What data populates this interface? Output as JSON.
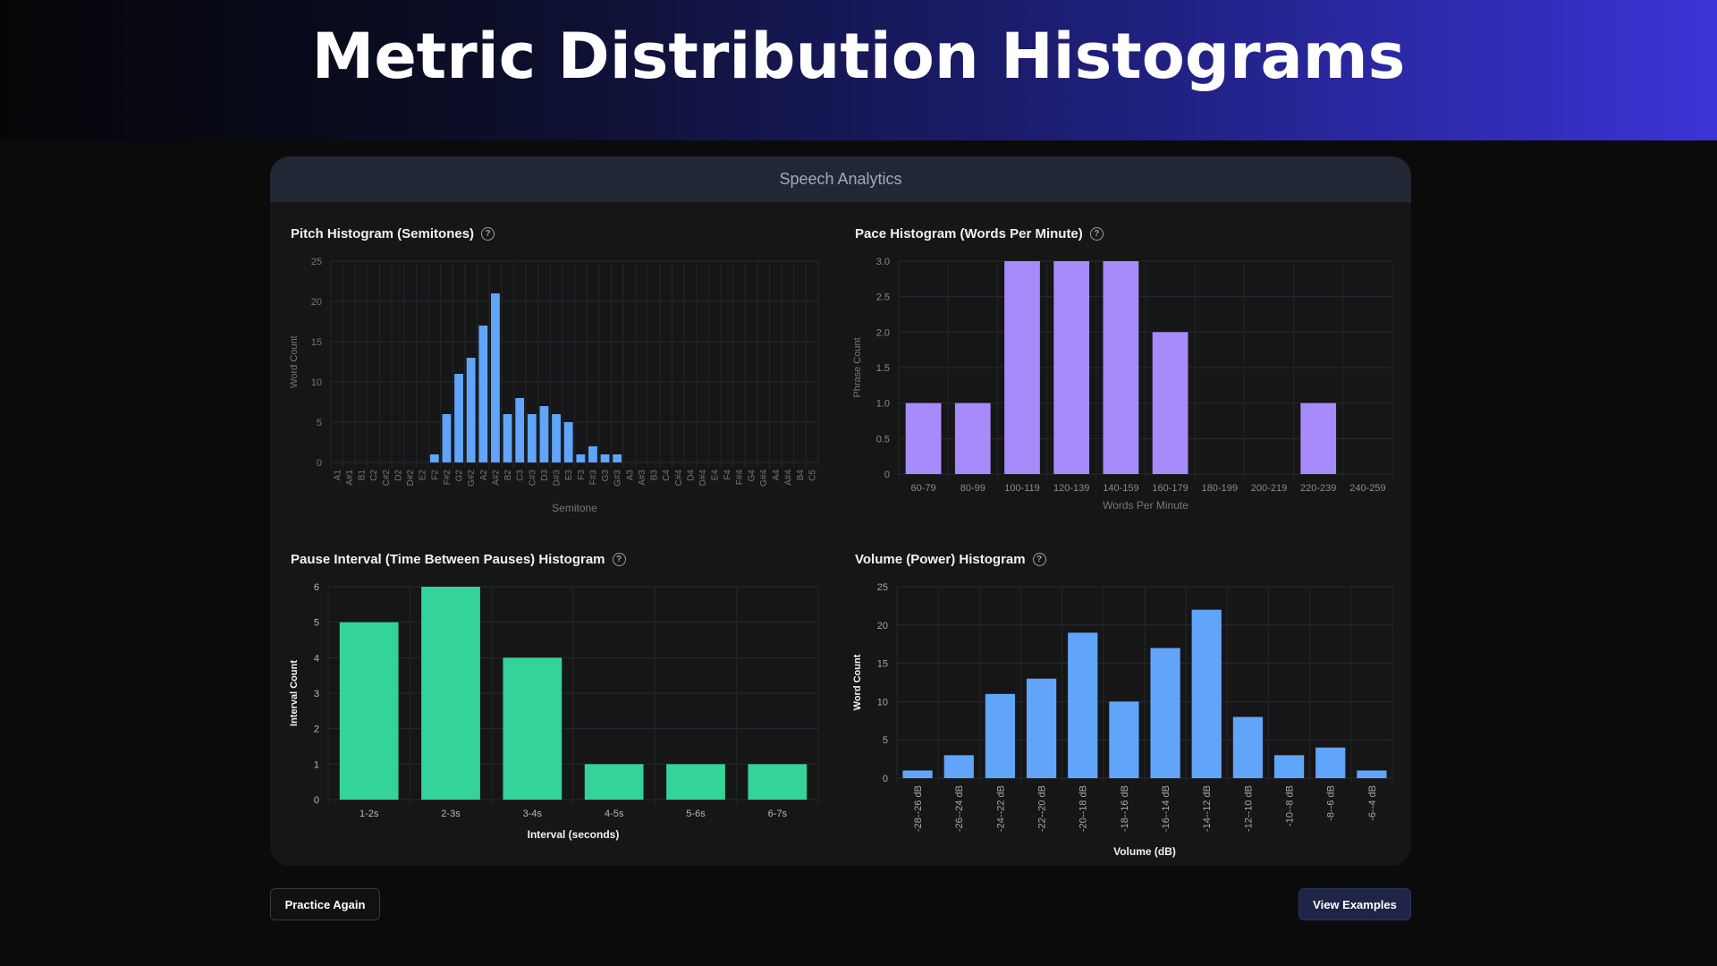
{
  "header": {
    "title": "Metric Distribution Histograms"
  },
  "card": {
    "title": "Speech Analytics"
  },
  "panels": [
    {
      "title": "Pitch Histogram (Semitones)",
      "help_icon": "?"
    },
    {
      "title": "Pace Histogram (Words Per Minute)",
      "help_icon": "?"
    },
    {
      "title": "Pause Interval (Time Between Pauses) Histogram",
      "help_icon": "?"
    },
    {
      "title": "Volume (Power) Histogram",
      "help_icon": "?"
    }
  ],
  "buttons": {
    "practice_again": "Practice Again",
    "view_examples": "View Examples"
  },
  "chart_data": [
    {
      "type": "bar",
      "title": "Pitch Histogram (Semitones)",
      "xlabel": "Semitone",
      "ylabel": "Word Count",
      "ylim": [
        0,
        25
      ],
      "yticks": [
        "0",
        "5",
        "10",
        "15",
        "20",
        "25"
      ],
      "color": "#60a5fa",
      "categories": [
        "A1",
        "A#1",
        "B1",
        "C2",
        "C#2",
        "D2",
        "D#2",
        "E2",
        "F2",
        "F#2",
        "G2",
        "G#2",
        "A2",
        "A#2",
        "B2",
        "C3",
        "C#3",
        "D3",
        "D#3",
        "E3",
        "F3",
        "F#3",
        "G3",
        "G#3",
        "A3",
        "A#3",
        "B3",
        "C4",
        "C#4",
        "D4",
        "D#4",
        "E4",
        "F4",
        "F#4",
        "G4",
        "G#4",
        "A4",
        "A#4",
        "B4",
        "C5"
      ],
      "values": [
        0,
        0,
        0,
        0,
        0,
        0,
        0,
        0,
        1,
        6,
        11,
        13,
        17,
        21,
        6,
        8,
        6,
        7,
        6,
        5,
        1,
        2,
        1,
        1,
        0,
        0,
        0,
        0,
        0,
        0,
        0,
        0,
        0,
        0,
        0,
        0,
        0,
        0,
        0,
        0
      ]
    },
    {
      "type": "bar",
      "title": "Pace Histogram (Words Per Minute)",
      "xlabel": "Words Per Minute",
      "ylabel": "Phrase Count",
      "ylim": [
        0,
        3
      ],
      "yticks": [
        "0",
        "0.5",
        "1.0",
        "1.5",
        "2.0",
        "2.5",
        "3.0"
      ],
      "color": "#a78bfa",
      "categories": [
        "60-79",
        "80-99",
        "100-119",
        "120-139",
        "140-159",
        "160-179",
        "180-199",
        "200-219",
        "220-239",
        "240-259"
      ],
      "values": [
        1,
        1,
        3,
        3,
        3,
        2,
        0,
        0,
        1,
        0
      ]
    },
    {
      "type": "bar",
      "title": "Pause Interval (Time Between Pauses) Histogram",
      "xlabel": "Interval (seconds)",
      "ylabel": "Interval Count",
      "ylim": [
        0,
        6
      ],
      "yticks": [
        "0",
        "1",
        "2",
        "3",
        "4",
        "5",
        "6"
      ],
      "color": "#34d399",
      "categories": [
        "1-2s",
        "2-3s",
        "3-4s",
        "4-5s",
        "5-6s",
        "6-7s"
      ],
      "values": [
        5,
        6,
        4,
        1,
        1,
        1
      ]
    },
    {
      "type": "bar",
      "title": "Volume (Power) Histogram",
      "xlabel": "Volume (dB)",
      "ylabel": "Word Count",
      "ylim": [
        0,
        25
      ],
      "yticks": [
        "0",
        "5",
        "10",
        "15",
        "20",
        "25"
      ],
      "color": "#60a5fa",
      "categories": [
        "-28--26 dB",
        "-26--24 dB",
        "-24--22 dB",
        "-22--20 dB",
        "-20--18 dB",
        "-18--16 dB",
        "-16--14 dB",
        "-14--12 dB",
        "-12--10 dB",
        "-10--8 dB",
        "-8--6 dB",
        "-6--4 dB"
      ],
      "values": [
        1,
        3,
        11,
        13,
        19,
        10,
        17,
        22,
        8,
        3,
        4,
        1
      ]
    }
  ]
}
